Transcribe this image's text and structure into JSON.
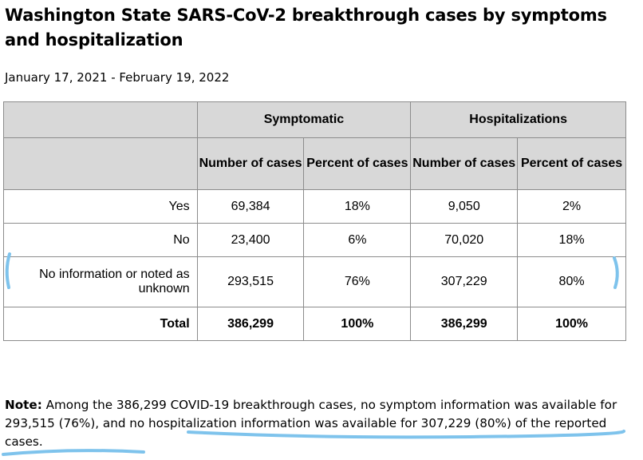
{
  "title": "Washington State SARS-CoV-2 breakthrough cases by symptoms and hospitalization",
  "date_range": "January 17, 2021 - February 19, 2022",
  "table": {
    "groups": [
      "Symptomatic",
      "Hospitalizations"
    ],
    "subheaders": [
      "Number of cases",
      "Percent of cases",
      "Number of cases",
      "Percent of cases"
    ],
    "rows": [
      {
        "label": "Yes",
        "values": [
          "69,384",
          "18%",
          "9,050",
          "2%"
        ]
      },
      {
        "label": "No",
        "values": [
          "23,400",
          "6%",
          "70,020",
          "18%"
        ]
      },
      {
        "label": "No information or noted as unknown",
        "values": [
          "293,515",
          "76%",
          "307,229",
          "80%"
        ]
      },
      {
        "label": "Total",
        "values": [
          "386,299",
          "100%",
          "386,299",
          "100%"
        ]
      }
    ]
  },
  "note": {
    "label": "Note:",
    "text": "Among the 386,299 COVID-19 breakthrough cases, no symptom information was available for 293,515 (76%), and no hospitalization information was available for 307,229 (80%) of the reported cases."
  },
  "colors": {
    "header_bg": "#d8d8d8",
    "border": "#8c8c8c",
    "annotation": "#7ec3ec"
  }
}
